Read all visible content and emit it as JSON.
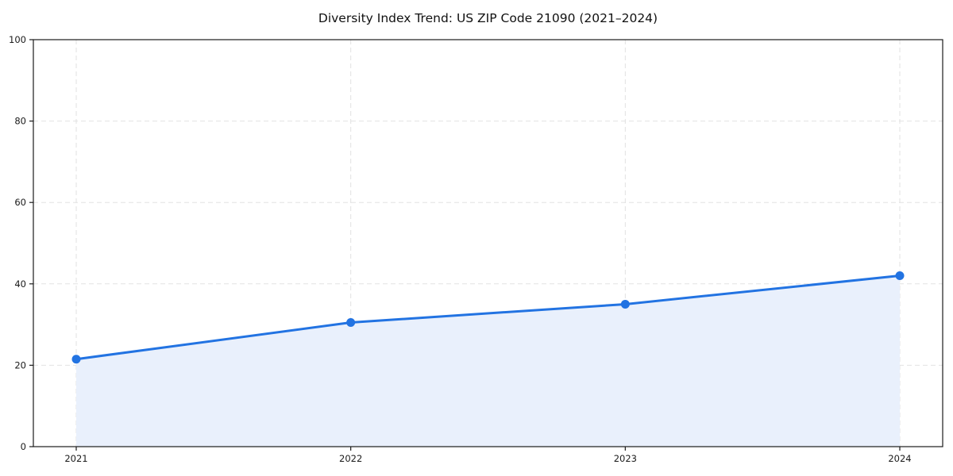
{
  "page": {
    "background": "#ffffff"
  },
  "chart_data": {
    "type": "line",
    "title": "Diversity Index Trend: US ZIP Code 21090 (2021–2024)",
    "x": [
      "2021",
      "2022",
      "2023",
      "2024"
    ],
    "series": [
      {
        "name": "Diversity Index",
        "values": [
          21.5,
          30.5,
          35,
          42
        ]
      }
    ],
    "xlabel": "",
    "ylabel": "",
    "ylim": [
      0,
      100
    ],
    "yticks": [
      0,
      20,
      40,
      60,
      80,
      100
    ],
    "grid": true,
    "grid_style": "dashed",
    "legend_position": "none",
    "area_fill_under_line": true,
    "style": {
      "line_color": "#2273e2",
      "marker_color": "#2273e2",
      "area_fill": "#e9f0fc",
      "grid_color": "#e2e2e2",
      "axis_color": "#1a1a1a",
      "tick_label_color": "#1a1a1a",
      "title_color": "#111111"
    }
  }
}
